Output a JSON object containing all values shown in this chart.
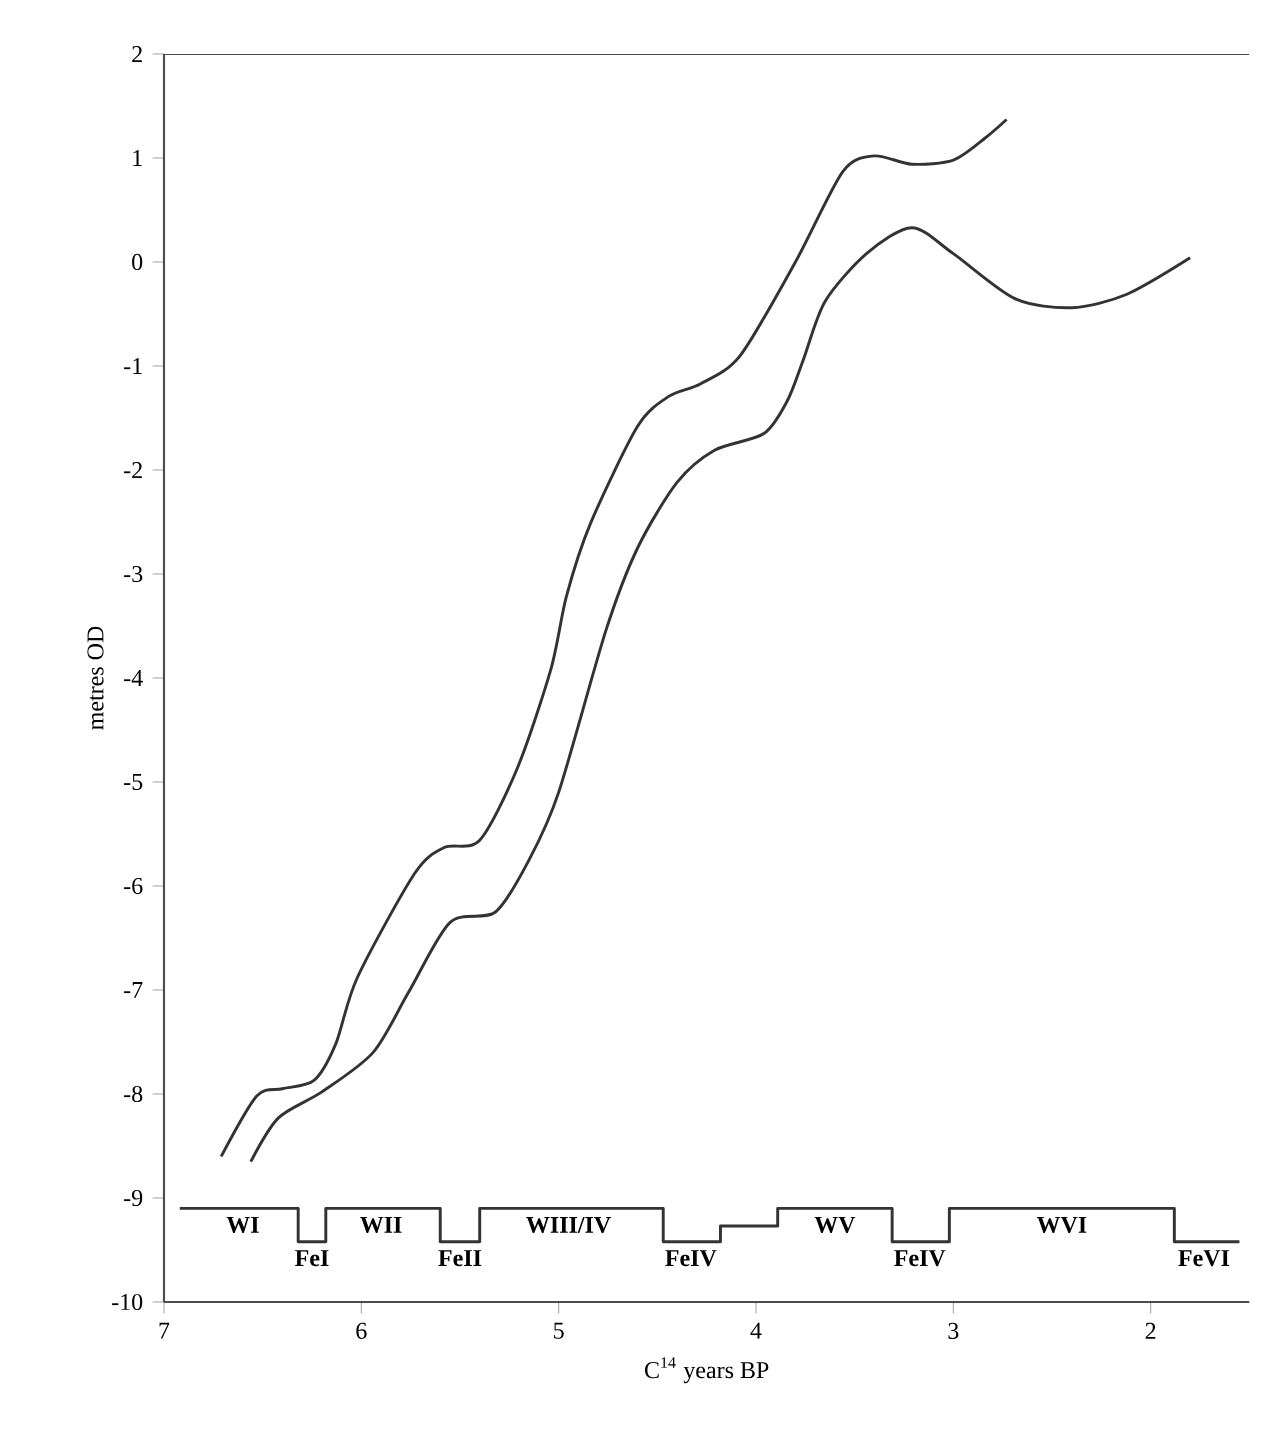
{
  "chart_data": {
    "type": "line",
    "xlabel": "C$^{14}$ years BP",
    "ylabel": "metres OD",
    "xlim": [
      7,
      1.5
    ],
    "ylim": [
      -10,
      2
    ],
    "xticks": [
      7,
      6,
      5,
      4,
      3,
      2
    ],
    "yticks": [
      -10,
      -9,
      -8,
      -7,
      -6,
      -5,
      -4,
      -3,
      -2,
      -1,
      0,
      1,
      2
    ],
    "series": [
      {
        "color": "#333333",
        "x": [
          6.71,
          6.53,
          6.4,
          6.24,
          6.13,
          6.02,
          5.73,
          5.58,
          5.4,
          5.21,
          5.04,
          4.96,
          4.84,
          4.6,
          4.44,
          4.28,
          4.08,
          3.8,
          3.56,
          3.4,
          3.21,
          3.0,
          2.84,
          2.73
        ],
        "values": [
          -8.6,
          -8.02,
          -7.95,
          -7.87,
          -7.52,
          -6.88,
          -5.88,
          -5.63,
          -5.56,
          -4.87,
          -3.92,
          -3.21,
          -2.52,
          -1.58,
          -1.29,
          -1.17,
          -0.9,
          0.0,
          0.87,
          1.02,
          0.94,
          0.98,
          1.19,
          1.37
        ]
      },
      {
        "color": "#333333",
        "x": [
          6.56,
          6.42,
          6.2,
          5.94,
          5.76,
          5.55,
          5.32,
          5.15,
          5.0,
          4.76,
          4.6,
          4.4,
          4.21,
          3.96,
          3.84,
          3.76,
          3.65,
          3.44,
          3.21,
          3.0,
          2.69,
          2.4,
          2.12,
          1.8
        ],
        "values": [
          -8.65,
          -8.23,
          -7.98,
          -7.6,
          -7.02,
          -6.35,
          -6.25,
          -5.75,
          -5.1,
          -3.54,
          -2.75,
          -2.12,
          -1.81,
          -1.65,
          -1.33,
          -0.94,
          -0.38,
          0.08,
          0.33,
          0.08,
          -0.35,
          -0.44,
          -0.31,
          0.04
        ]
      },
      {
        "type": "step",
        "color": "#333333",
        "x": [
          6.92,
          6.32,
          6.18,
          5.6,
          5.4,
          4.47,
          4.18,
          3.89,
          3.31,
          3.02,
          1.88,
          1.55
        ],
        "values": [
          -9.1,
          -9.42,
          -9.1,
          -9.42,
          -9.1,
          -9.42,
          -9.27,
          -9.1,
          -9.42,
          -9.1,
          -9.42,
          -9.42
        ]
      }
    ],
    "annotations": [
      {
        "text": "WI",
        "x": 6.6,
        "y": -9.1
      },
      {
        "text": "FeI",
        "x": 6.25,
        "y": -9.42
      },
      {
        "text": "WII",
        "x": 5.9,
        "y": -9.1
      },
      {
        "text": "FeII",
        "x": 5.5,
        "y": -9.42
      },
      {
        "text": "WIII/IV",
        "x": 4.95,
        "y": -9.1
      },
      {
        "text": "FeIV",
        "x": 4.33,
        "y": -9.42
      },
      {
        "text": "WV",
        "x": 3.6,
        "y": -9.1
      },
      {
        "text": "FeIV",
        "x": 3.17,
        "y": -9.42
      },
      {
        "text": "WVI",
        "x": 2.45,
        "y": -9.1
      },
      {
        "text": "FeVI",
        "x": 1.73,
        "y": -9.42
      }
    ]
  }
}
